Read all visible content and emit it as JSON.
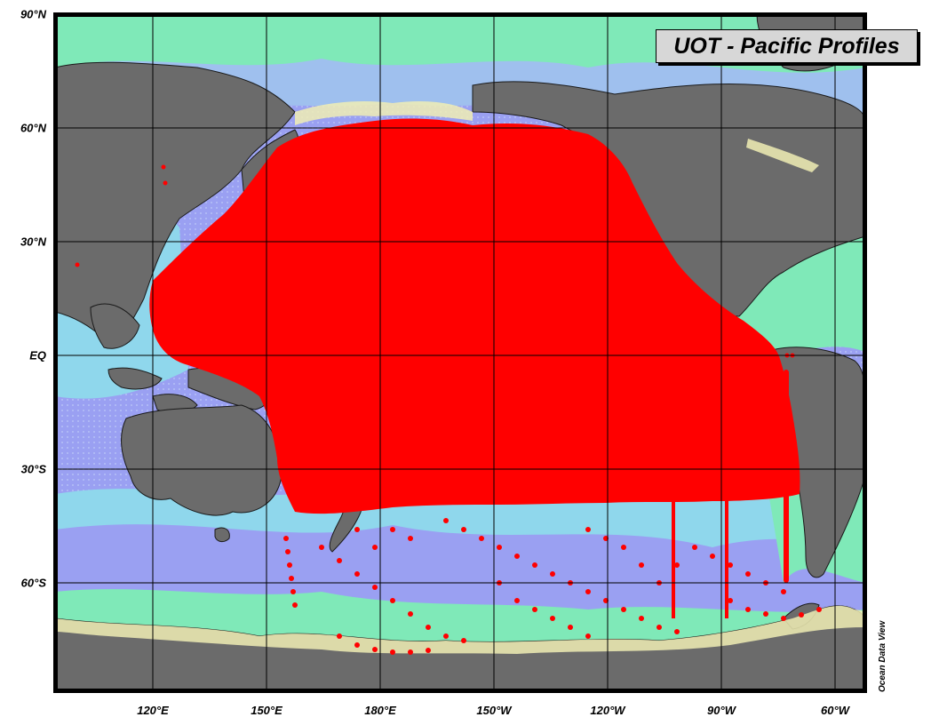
{
  "title": "UOT - Pacific Profiles",
  "credit": "Ocean Data View",
  "axes": {
    "latitude_ticks": [
      "90°N",
      "60°N",
      "30°N",
      "EQ",
      "30°S",
      "60°S"
    ],
    "longitude_ticks": [
      "120°E",
      "150°E",
      "180°E",
      "150°W",
      "120°W",
      "90°W",
      "60°W"
    ]
  },
  "colors": {
    "profile_dots": "#ff0000",
    "land": "#6b6b6b",
    "coastal_shelf": "#f0edb4",
    "shelf_edge": "#7fe9b8",
    "slope": "#79b8f0",
    "deep_ocean": "#9a9ef2",
    "grid": "#000000"
  }
}
